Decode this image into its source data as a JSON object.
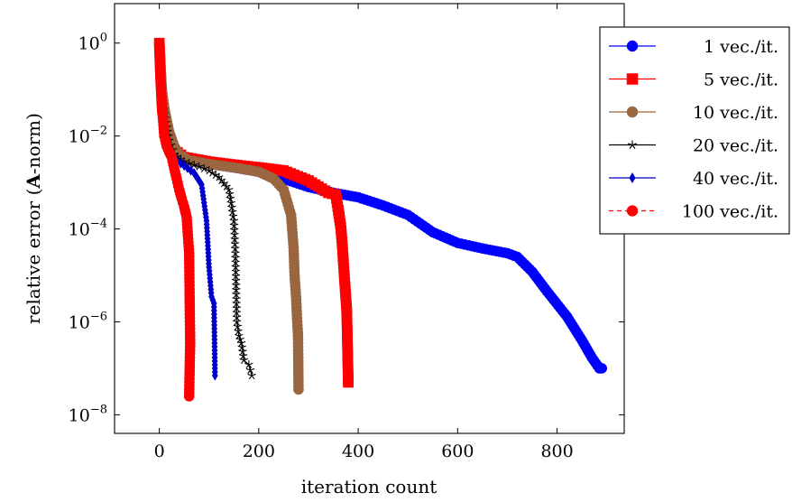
{
  "chart_data": {
    "type": "line",
    "xlabel": "iteration count",
    "ylabel_prefix": "relative error (",
    "ylabel_bold": "A",
    "ylabel_suffix": "-norm)",
    "xlim": [
      -90,
      935
    ],
    "ylim_log10": [
      -8.4,
      0.85
    ],
    "y_scale": "log",
    "grid": false,
    "legend_placement": "right",
    "x_ticks": [
      0,
      200,
      400,
      600,
      800
    ],
    "x_tick_labels": [
      "0",
      "200",
      "400",
      "600",
      "800"
    ],
    "y_ticks_log10": [
      0,
      -2,
      -4,
      -6,
      -8
    ],
    "y_tick_bases": [
      "10",
      "10",
      "10",
      "10",
      "10"
    ],
    "y_tick_exps": [
      "0",
      "−2",
      "−4",
      "−6",
      "−8"
    ],
    "series": [
      {
        "name": "1 vec./it.",
        "color": "#0000ff",
        "marker": "circle",
        "dashed": false,
        "points": [
          [
            0,
            1.0
          ],
          [
            2,
            0.4
          ],
          [
            4,
            0.15
          ],
          [
            6,
            0.07
          ],
          [
            10,
            0.035
          ],
          [
            15,
            0.02
          ],
          [
            20,
            0.012
          ],
          [
            30,
            0.006
          ],
          [
            40,
            0.0038
          ],
          [
            60,
            0.003
          ],
          [
            80,
            0.0027
          ],
          [
            100,
            0.0025
          ],
          [
            150,
            0.0021
          ],
          [
            200,
            0.0017
          ],
          [
            250,
            0.0012
          ],
          [
            300,
            0.0008
          ],
          [
            350,
            0.0006
          ],
          [
            400,
            0.00048
          ],
          [
            450,
            0.00032
          ],
          [
            500,
            0.0002
          ],
          [
            550,
            8.5e-05
          ],
          [
            600,
            5e-05
          ],
          [
            650,
            3.8e-05
          ],
          [
            700,
            3e-05
          ],
          [
            720,
            2.5e-05
          ],
          [
            750,
            1.2e-05
          ],
          [
            780,
            4.5e-06
          ],
          [
            820,
            1.3e-06
          ],
          [
            850,
            4e-07
          ],
          [
            870,
            1.7e-07
          ],
          [
            885,
            1e-07
          ],
          [
            890,
            1e-07
          ]
        ]
      },
      {
        "name": "5 vec./it.",
        "color": "#ff0000",
        "marker": "square",
        "dashed": false,
        "points": [
          [
            0,
            1.0
          ],
          [
            2,
            0.3
          ],
          [
            4,
            0.1
          ],
          [
            6,
            0.04
          ],
          [
            10,
            0.02
          ],
          [
            20,
            0.008
          ],
          [
            30,
            0.005
          ],
          [
            50,
            0.0035
          ],
          [
            100,
            0.0028
          ],
          [
            150,
            0.0024
          ],
          [
            200,
            0.0021
          ],
          [
            250,
            0.0018
          ],
          [
            300,
            0.0011
          ],
          [
            340,
            0.0006
          ],
          [
            355,
            0.00055
          ],
          [
            360,
            0.00025
          ],
          [
            365,
            0.00011
          ],
          [
            368,
            4.5e-05
          ],
          [
            372,
            1e-05
          ],
          [
            375,
            3.5e-06
          ],
          [
            377,
            1.7e-06
          ],
          [
            380,
            5e-08
          ]
        ]
      },
      {
        "name": "10 vec./it.",
        "color": "#99663f",
        "marker": "circle",
        "dashed": false,
        "points": [
          [
            0,
            1.0
          ],
          [
            2,
            0.4
          ],
          [
            5,
            0.1
          ],
          [
            10,
            0.04
          ],
          [
            20,
            0.012
          ],
          [
            30,
            0.006
          ],
          [
            40,
            0.004
          ],
          [
            60,
            0.003
          ],
          [
            100,
            0.0025
          ],
          [
            150,
            0.0021
          ],
          [
            200,
            0.0017
          ],
          [
            230,
            0.0012
          ],
          [
            250,
            0.0007
          ],
          [
            265,
            0.0002
          ],
          [
            270,
            4e-05
          ],
          [
            272,
            1e-05
          ],
          [
            275,
            3.5e-06
          ],
          [
            277,
            1.2e-06
          ],
          [
            279,
            5e-07
          ],
          [
            280,
            3.5e-08
          ]
        ]
      },
      {
        "name": "20 vec./it.",
        "color": "#000000",
        "marker": "star",
        "dashed": false,
        "points": [
          [
            0,
            1.0
          ],
          [
            2,
            0.3
          ],
          [
            5,
            0.07
          ],
          [
            10,
            0.03
          ],
          [
            20,
            0.008
          ],
          [
            30,
            0.004
          ],
          [
            50,
            0.0028
          ],
          [
            80,
            0.0022
          ],
          [
            100,
            0.0018
          ],
          [
            120,
            0.0013
          ],
          [
            140,
            0.0007
          ],
          [
            150,
            0.00015
          ],
          [
            153,
            3e-05
          ],
          [
            156,
            1e-06
          ],
          [
            160,
            5e-07
          ],
          [
            165,
            3.5e-07
          ],
          [
            170,
            1.5e-07
          ],
          [
            180,
            1.2e-07
          ],
          [
            186,
            7e-08
          ]
        ]
      },
      {
        "name": "40 vec./it.",
        "color": "#0000cc",
        "marker": "diamond",
        "dashed": false,
        "points": [
          [
            0,
            1.0
          ],
          [
            3,
            0.1
          ],
          [
            6,
            0.035
          ],
          [
            10,
            0.015
          ],
          [
            20,
            0.006
          ],
          [
            30,
            0.0032
          ],
          [
            50,
            0.0023
          ],
          [
            70,
            0.0016
          ],
          [
            85,
            0.0009
          ],
          [
            95,
            0.00015
          ],
          [
            100,
            1.5e-05
          ],
          [
            105,
            3.5e-06
          ],
          [
            110,
            2.5e-06
          ],
          [
            112,
            7e-08
          ]
        ]
      },
      {
        "name": "100 vec./it.",
        "color": "#ff0000",
        "marker": "circle",
        "dashed": true,
        "points": [
          [
            0,
            1.0
          ],
          [
            2,
            0.2
          ],
          [
            5,
            0.05
          ],
          [
            10,
            0.01
          ],
          [
            15,
            0.006
          ],
          [
            20,
            0.0045
          ],
          [
            25,
            0.0035
          ],
          [
            30,
            0.002
          ],
          [
            35,
            0.0012
          ],
          [
            40,
            0.0007
          ],
          [
            45,
            0.00045
          ],
          [
            50,
            0.0003
          ],
          [
            55,
            0.00018
          ],
          [
            60,
            3e-05
          ],
          [
            62,
            3.5e-07
          ],
          [
            60,
            2.5e-08
          ]
        ]
      }
    ]
  }
}
